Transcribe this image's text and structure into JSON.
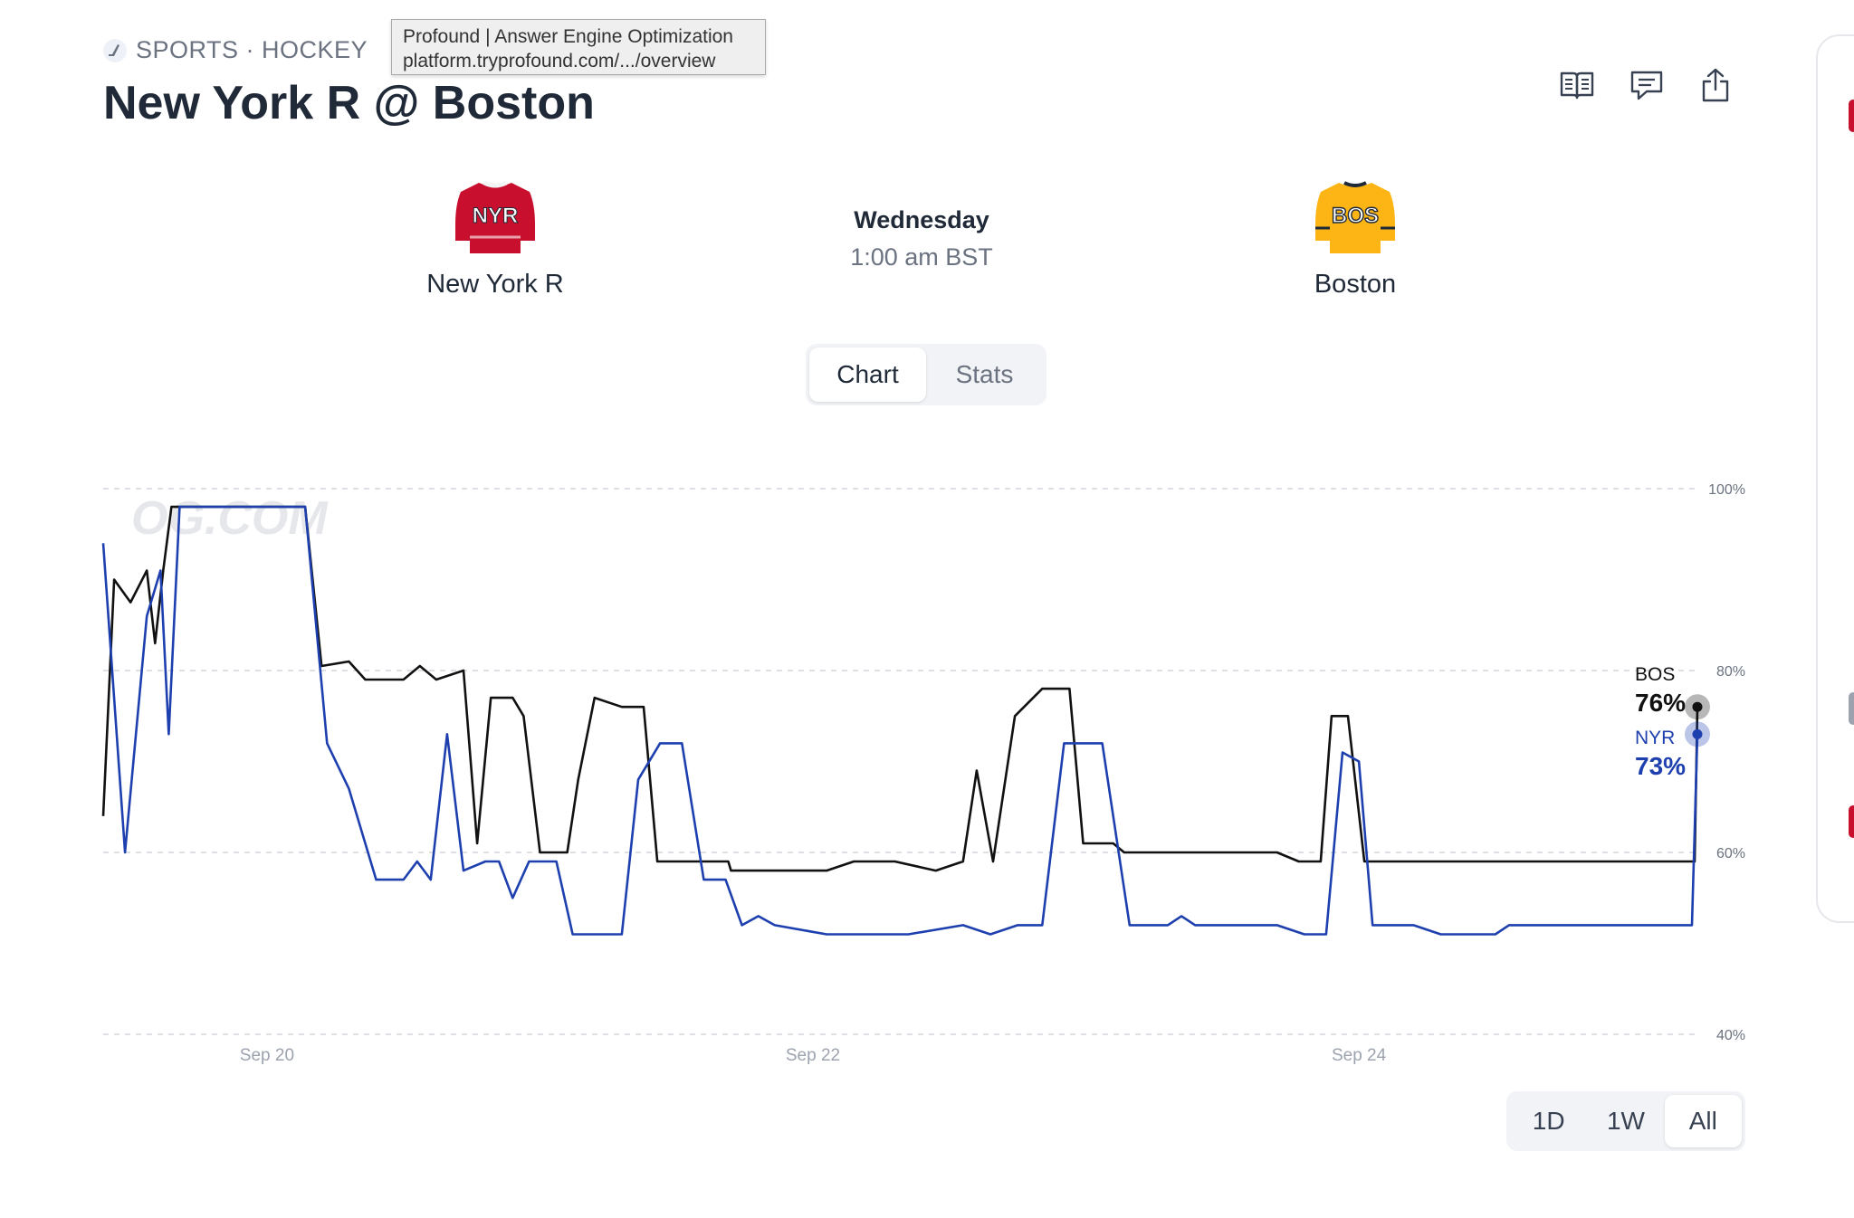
{
  "header": {
    "category": "SPORTS · HOCKEY",
    "title": "New York R @ Boston",
    "icons": [
      "book-icon",
      "comment-icon",
      "share-icon"
    ]
  },
  "tooltip": {
    "line1": "Profound | Answer Engine Optimization",
    "line2": "platform.tryprofound.com/.../overview"
  },
  "matchup": {
    "away": {
      "abbr": "NYR",
      "name": "New York R",
      "color": "#c8102e"
    },
    "home": {
      "abbr": "BOS",
      "name": "Boston",
      "color": "#fcb514"
    },
    "day": "Wednesday",
    "time": "1:00 am BST"
  },
  "view_toggle": [
    "Chart",
    "Stats"
  ],
  "active_view": "Chart",
  "watermark": "OG.COM",
  "chart_data": {
    "type": "line",
    "x_tick_labels": [
      "Sep 20",
      "Sep 22",
      "Sep 24"
    ],
    "y_tick_labels": [
      "100%",
      "80%",
      "60%",
      "40%"
    ],
    "ylim": [
      40,
      100
    ],
    "grid": true,
    "series": [
      {
        "name": "BOS",
        "color": "#111111",
        "current_label": "76%",
        "points": [
          [
            19.4,
            64
          ],
          [
            19.44,
            90
          ],
          [
            19.5,
            87.5
          ],
          [
            19.56,
            91
          ],
          [
            19.59,
            83
          ],
          [
            19.62,
            91
          ],
          [
            19.65,
            98
          ],
          [
            20.14,
            98
          ],
          [
            20.2,
            80.5
          ],
          [
            20.3,
            81
          ],
          [
            20.36,
            79
          ],
          [
            20.5,
            79
          ],
          [
            20.56,
            80.5
          ],
          [
            20.62,
            79
          ],
          [
            20.72,
            80
          ],
          [
            20.77,
            61
          ],
          [
            20.82,
            77
          ],
          [
            20.9,
            77
          ],
          [
            20.94,
            75
          ],
          [
            21.0,
            60
          ],
          [
            21.1,
            60
          ],
          [
            21.14,
            68
          ],
          [
            21.2,
            77
          ],
          [
            21.3,
            76
          ],
          [
            21.38,
            76
          ],
          [
            21.43,
            59
          ],
          [
            21.69,
            59
          ],
          [
            21.7,
            58
          ],
          [
            22.05,
            58
          ],
          [
            22.15,
            59
          ],
          [
            22.3,
            59
          ],
          [
            22.45,
            58
          ],
          [
            22.55,
            59
          ],
          [
            22.6,
            69
          ],
          [
            22.66,
            59
          ],
          [
            22.74,
            75
          ],
          [
            22.84,
            78
          ],
          [
            22.94,
            78
          ],
          [
            22.99,
            61
          ],
          [
            23.1,
            61
          ],
          [
            23.14,
            60
          ],
          [
            23.2,
            60
          ],
          [
            23.3,
            60
          ],
          [
            23.7,
            60
          ],
          [
            23.78,
            59
          ],
          [
            23.86,
            59
          ],
          [
            23.9,
            75
          ],
          [
            23.96,
            75
          ],
          [
            24.02,
            59
          ],
          [
            25.23,
            59
          ],
          [
            25.24,
            76
          ]
        ]
      },
      {
        "name": "NYR",
        "color": "#1e40af",
        "current_label": "73%",
        "points": [
          [
            19.4,
            94
          ],
          [
            19.48,
            60
          ],
          [
            19.56,
            86
          ],
          [
            19.61,
            91
          ],
          [
            19.64,
            73
          ],
          [
            19.68,
            98
          ],
          [
            20.14,
            98
          ],
          [
            20.22,
            72
          ],
          [
            20.3,
            67
          ],
          [
            20.4,
            57
          ],
          [
            20.5,
            57
          ],
          [
            20.55,
            59
          ],
          [
            20.6,
            57
          ],
          [
            20.66,
            73
          ],
          [
            20.72,
            58
          ],
          [
            20.8,
            59
          ],
          [
            20.85,
            59
          ],
          [
            20.9,
            55
          ],
          [
            20.96,
            59
          ],
          [
            21.06,
            59
          ],
          [
            21.12,
            51
          ],
          [
            21.3,
            51
          ],
          [
            21.36,
            68
          ],
          [
            21.44,
            72
          ],
          [
            21.52,
            72
          ],
          [
            21.6,
            57
          ],
          [
            21.68,
            57
          ],
          [
            21.74,
            52
          ],
          [
            21.8,
            53
          ],
          [
            21.86,
            52
          ],
          [
            22.05,
            51
          ],
          [
            22.35,
            51
          ],
          [
            22.55,
            52
          ],
          [
            22.65,
            51
          ],
          [
            22.75,
            52
          ],
          [
            22.84,
            52
          ],
          [
            22.92,
            72
          ],
          [
            23.06,
            72
          ],
          [
            23.16,
            52
          ],
          [
            23.3,
            52
          ],
          [
            23.35,
            53
          ],
          [
            23.4,
            52
          ],
          [
            23.7,
            52
          ],
          [
            23.8,
            51
          ],
          [
            23.88,
            51
          ],
          [
            23.94,
            71
          ],
          [
            24.0,
            70
          ],
          [
            24.05,
            52
          ],
          [
            24.2,
            52
          ],
          [
            24.3,
            51
          ],
          [
            24.5,
            51
          ],
          [
            24.55,
            52
          ],
          [
            25.1,
            52
          ],
          [
            25.22,
            52
          ],
          [
            25.24,
            73
          ]
        ]
      }
    ]
  },
  "time_range": [
    "1D",
    "1W",
    "All"
  ],
  "active_range": "All"
}
